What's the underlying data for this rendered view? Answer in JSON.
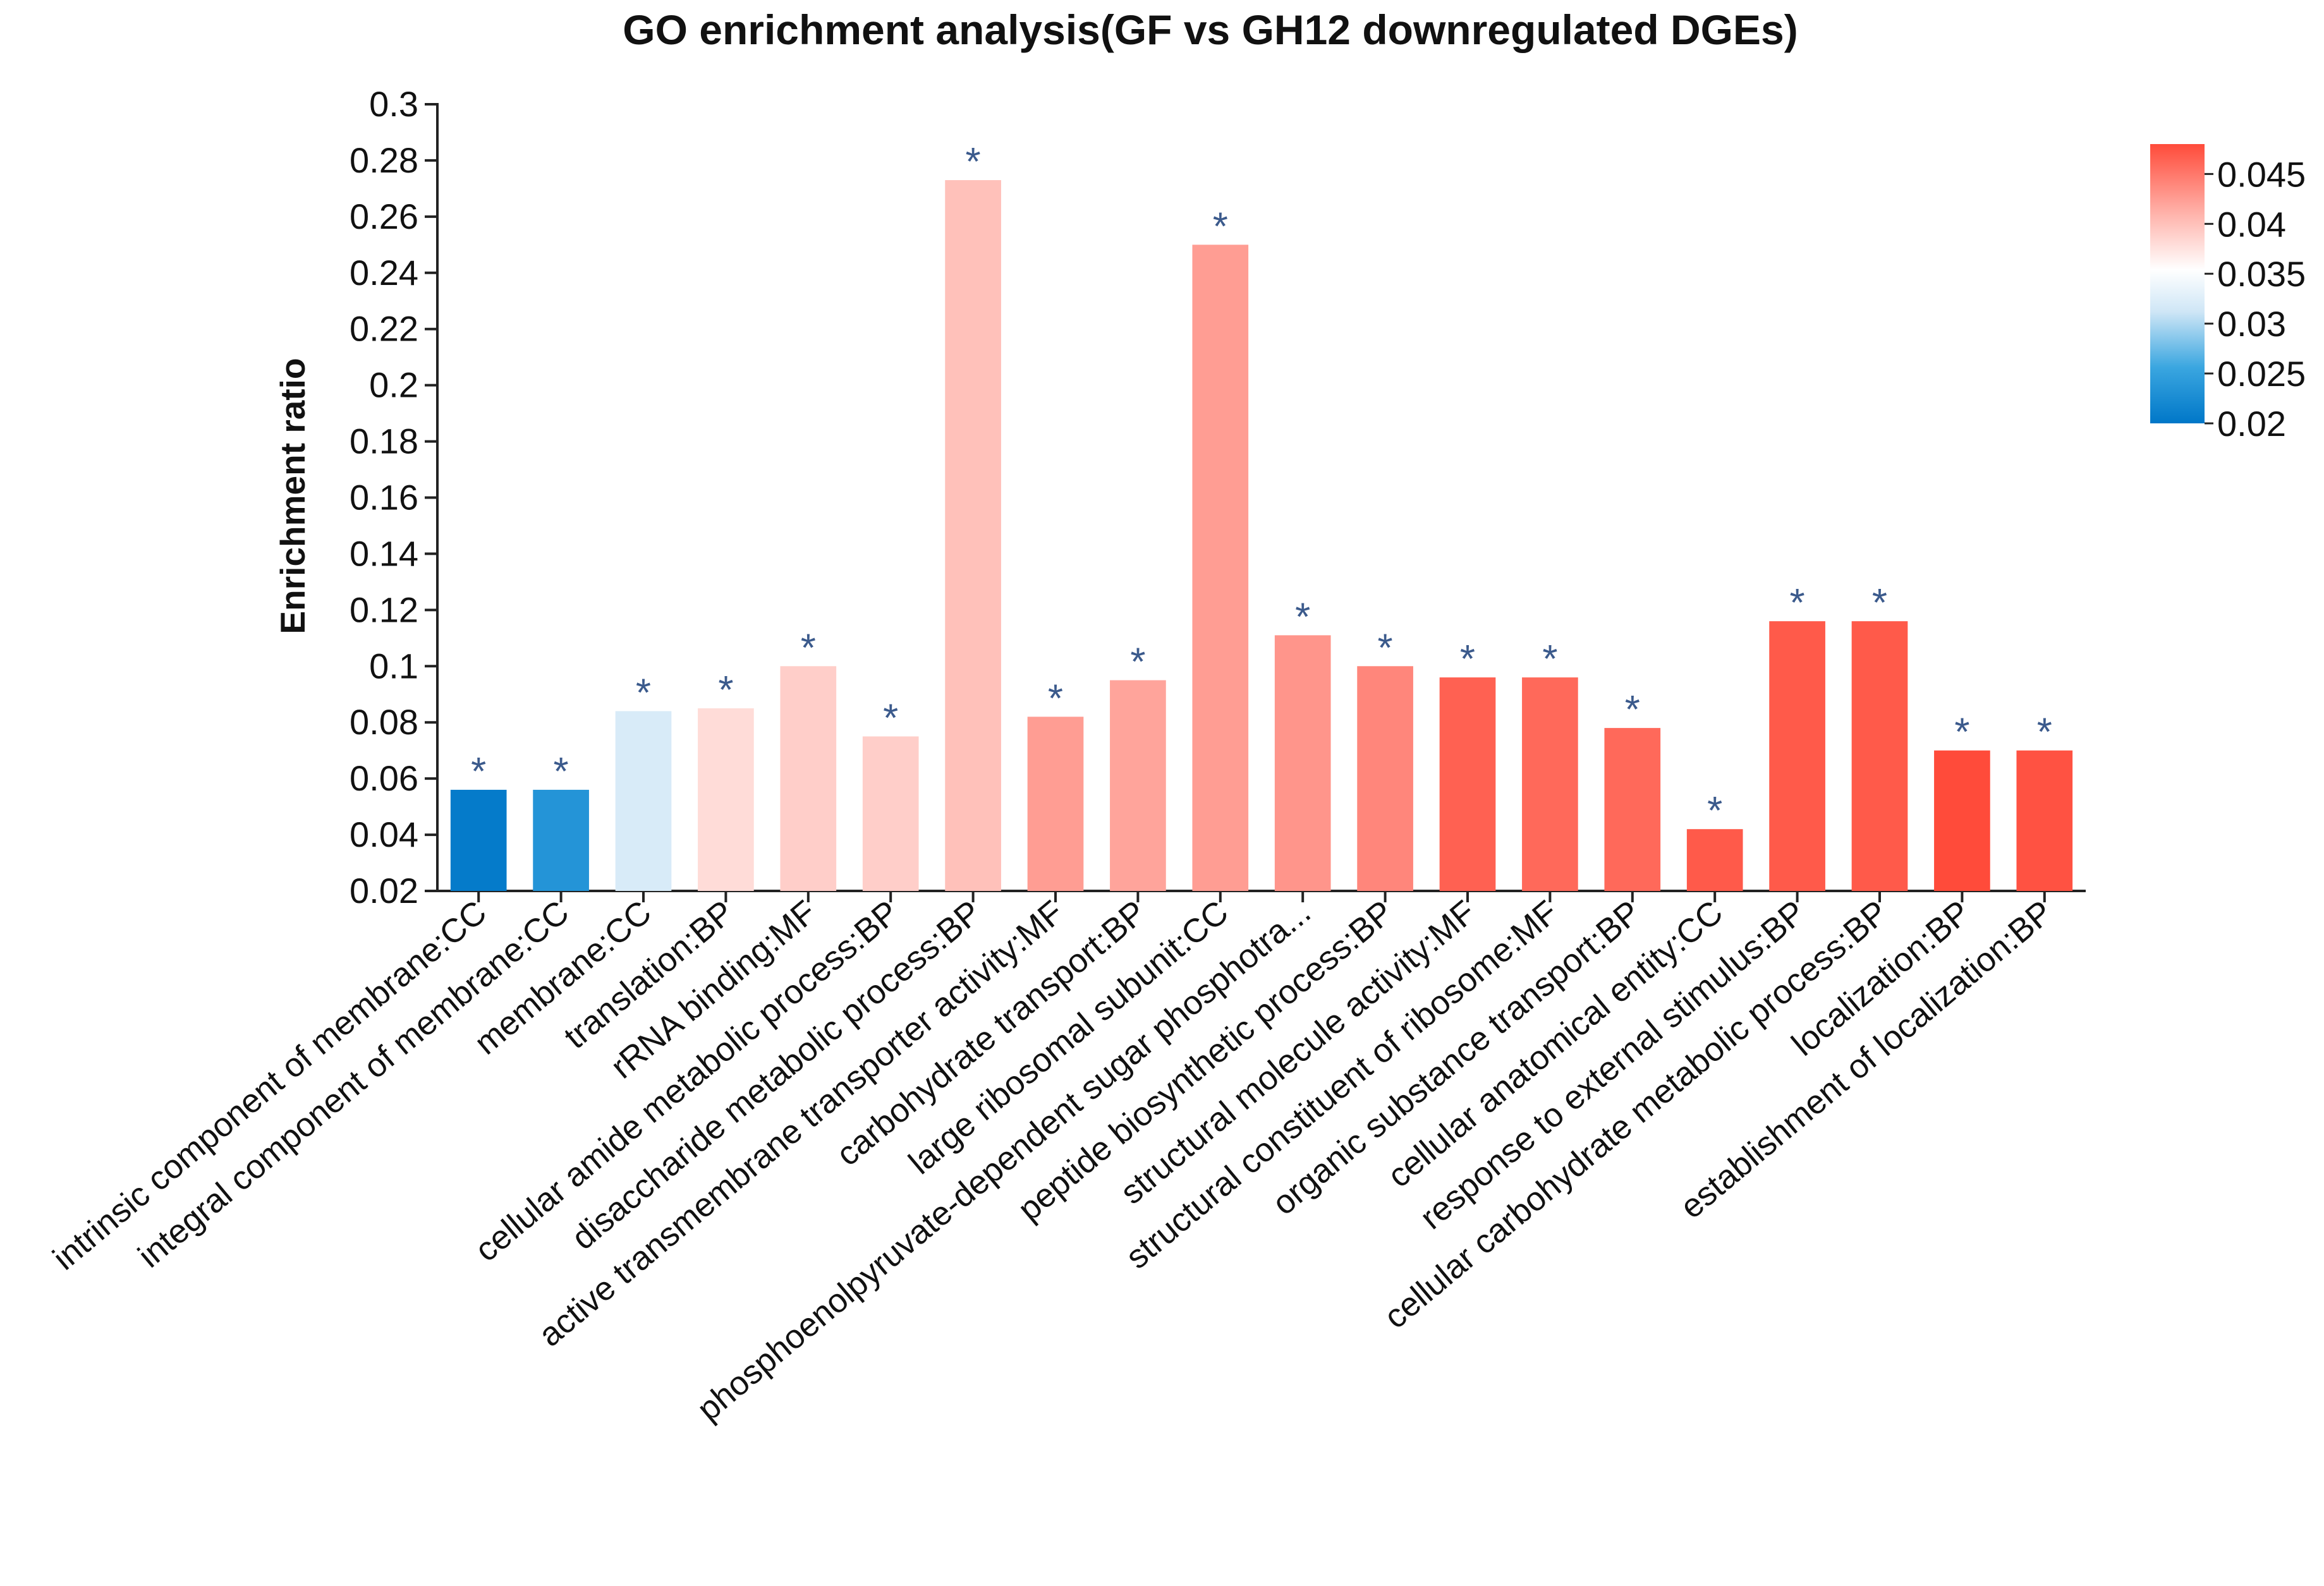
{
  "chart_data": {
    "type": "bar",
    "title": "GO enrichment analysis(GF vs GH12 downregulated DGEs)",
    "xlabel": "",
    "ylabel": "Enrichment ratio",
    "ylim": [
      0.02,
      0.3
    ],
    "yticks": [
      "0.02",
      "0.04",
      "0.06",
      "0.08",
      "0.1",
      "0.12",
      "0.14",
      "0.16",
      "0.18",
      "0.2",
      "0.22",
      "0.24",
      "0.26",
      "0.28",
      "0.3"
    ],
    "grid": false,
    "legend": "top-right colorbar",
    "categories": [
      "intrinsic component of membrane:CC",
      "integral component of membrane:CC",
      "membrane:CC",
      "translation:BP",
      "rRNA binding:MF",
      "cellular amide metabolic process:BP",
      "disaccharide metabolic process:BP",
      "active transmembrane transporter activity:MF",
      "carbohydrate transport:BP",
      "large ribosomal subunit:CC",
      "phosphoenolpyruvate-dependent sugar phosphotra...",
      "peptide biosynthetic process:BP",
      "structural molecule activity:MF",
      "structural constituent of ribosome:MF",
      "organic substance transport:BP",
      "cellular anatomical entity:CC",
      "response to external stimulus:BP",
      "cellular carbohydrate metabolic process:BP",
      "localization:BP",
      "establishment of localization:BP"
    ],
    "values": [
      0.056,
      0.056,
      0.084,
      0.085,
      0.1,
      0.075,
      0.273,
      0.082,
      0.095,
      0.25,
      0.111,
      0.1,
      0.096,
      0.096,
      0.078,
      0.042,
      0.116,
      0.116,
      0.07,
      0.07
    ],
    "color_values": [
      0.0205,
      0.0235,
      0.032,
      0.038,
      0.039,
      0.039,
      0.04,
      0.0425,
      0.042,
      0.0425,
      0.043,
      0.044,
      0.0465,
      0.046,
      0.046,
      0.047,
      0.047,
      0.047,
      0.048,
      0.0475
    ],
    "significance_marks": [
      "*",
      "*",
      "*",
      "*",
      "*",
      "*",
      "*",
      "*",
      "*",
      "*",
      "*",
      "*",
      "*",
      "*",
      "*",
      "*",
      "*",
      "*",
      "*",
      "*"
    ],
    "colorbar": {
      "ticks": [
        "0.045",
        "0.04",
        "0.035",
        "0.03",
        "0.025",
        "0.02"
      ],
      "range": [
        0.02,
        0.048
      ],
      "colors": {
        "low": "#0077c8",
        "mid": "#ffffff",
        "high": "#ff4b3a"
      }
    }
  }
}
